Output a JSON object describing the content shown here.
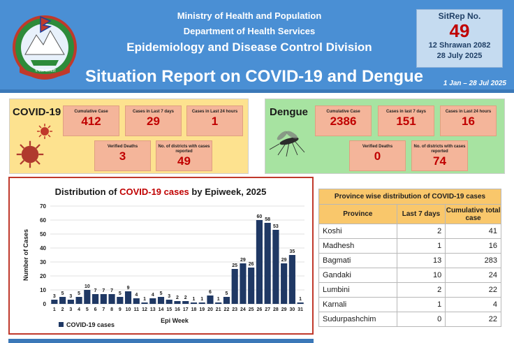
{
  "header": {
    "ministry": "Ministry of Health and Population",
    "department": "Department of Health Services",
    "division": "Epidemiology and Disease Control Division",
    "title": "Situation Report on COVID-19 and Dengue",
    "emblem_text": "नेपाल सरकार",
    "sitrep_label": "SitRep No.",
    "sitrep_number": "49",
    "date_nepali": "12 Shrawan 2082",
    "date_english": "28 July 2025",
    "period": "1 Jan – 28 Jul 2025"
  },
  "covid": {
    "title": "COVID-19",
    "stats": [
      {
        "label": "Cumulative Case",
        "value": "412"
      },
      {
        "label": "Cases in Last 7 days",
        "value": "29"
      },
      {
        "label": "Cases in Last 24 hours",
        "value": "1"
      },
      {
        "label": "Verified Deaths",
        "value": "3"
      },
      {
        "label": "No. of districts with cases reported",
        "value": "49"
      }
    ]
  },
  "dengue": {
    "title": "Dengue",
    "stats": [
      {
        "label": "Cumulative Case",
        "value": "2386"
      },
      {
        "label": "Cases in last 7 days",
        "value": "151"
      },
      {
        "label": "Cases in Last 24 hours",
        "value": "16"
      },
      {
        "label": "Verified Deaths",
        "value": "0"
      },
      {
        "label": "No. of districts with cases reported",
        "value": "74"
      }
    ]
  },
  "chart_data": {
    "type": "bar",
    "title_prefix": "Distribution of ",
    "title_highlight": "COVID-19 cases",
    "title_suffix": " by Epiweek, 2025",
    "xlabel": "Epi Week",
    "ylabel": "Number of Cases",
    "ylim": [
      0,
      70
    ],
    "yticks": [
      0,
      10,
      20,
      30,
      40,
      50,
      60,
      70
    ],
    "categories": [
      "1",
      "2",
      "3",
      "4",
      "5",
      "6",
      "7",
      "8",
      "9",
      "10",
      "11",
      "12",
      "13",
      "14",
      "15",
      "16",
      "17",
      "18",
      "19",
      "20",
      "21",
      "22",
      "23",
      "24",
      "25",
      "26",
      "27",
      "28",
      "29",
      "30",
      "31"
    ],
    "series": [
      {
        "name": "COVID-19 cases",
        "values": [
          3,
          5,
          3,
          5,
          10,
          7,
          7,
          7,
          5,
          9,
          4,
          1,
          4,
          5,
          3,
          2,
          2,
          1,
          1,
          6,
          1,
          5,
          25,
          29,
          26,
          60,
          58,
          53,
          29,
          35,
          1
        ]
      }
    ],
    "bar_color": "#1f3864",
    "grid": true,
    "legend": "bottom-left"
  },
  "province_table": {
    "caption": "Province wise distribution of COVID-19 cases",
    "headers": [
      "Province",
      "Last 7 days",
      "Cumulative total case"
    ],
    "rows": [
      {
        "province": "Koshi",
        "last7": "2",
        "total": "41"
      },
      {
        "province": "Madhesh",
        "last7": "1",
        "total": "16"
      },
      {
        "province": "Bagmati",
        "last7": "13",
        "total": "283"
      },
      {
        "province": "Gandaki",
        "last7": "10",
        "total": "24"
      },
      {
        "province": "Lumbini",
        "last7": "2",
        "total": "22"
      },
      {
        "province": "Karnali",
        "last7": "1",
        "total": "4"
      },
      {
        "province": "Sudurpashchim",
        "last7": "0",
        "total": "22"
      }
    ]
  }
}
